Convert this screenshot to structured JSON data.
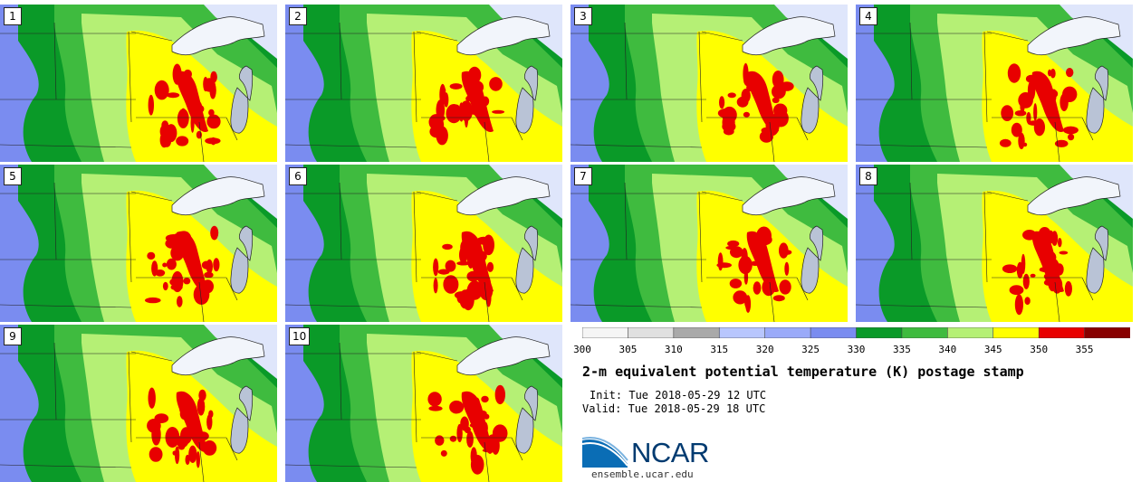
{
  "members": [
    {
      "label": "1"
    },
    {
      "label": "2"
    },
    {
      "label": "3"
    },
    {
      "label": "4"
    },
    {
      "label": "5"
    },
    {
      "label": "6"
    },
    {
      "label": "7"
    },
    {
      "label": "8"
    },
    {
      "label": "9"
    },
    {
      "label": "10"
    }
  ],
  "colorbar": {
    "ticks": [
      "300",
      "305",
      "310",
      "315",
      "320",
      "325",
      "330",
      "335",
      "340",
      "345",
      "350",
      "355"
    ],
    "colors": [
      "#f5f5f5",
      "#e0e0e0",
      "#a9a9a9",
      "#b8c6fd",
      "#9aaaf9",
      "#7a8cf0",
      "#0a9a28",
      "#3fbb3f",
      "#b5f075",
      "#ffff00",
      "#e80000",
      "#880000"
    ]
  },
  "title": "2-m equivalent potential temperature (K) postage stamp",
  "init": "Init: Tue 2018-05-29 12 UTC",
  "valid": "Valid: Tue 2018-05-29 18 UTC",
  "logo_text": "NCAR",
  "website": "ensemble.ucar.edu",
  "colors": {
    "cold": "#7a8cf0",
    "dark_green": "#0a9a28",
    "mid_green": "#3fbb3f",
    "light_green": "#b5f075",
    "yellow": "#ffff00",
    "red": "#e80000",
    "lake_ice": "#f2f5fb",
    "lake_michigan": "#b9c3d6"
  }
}
